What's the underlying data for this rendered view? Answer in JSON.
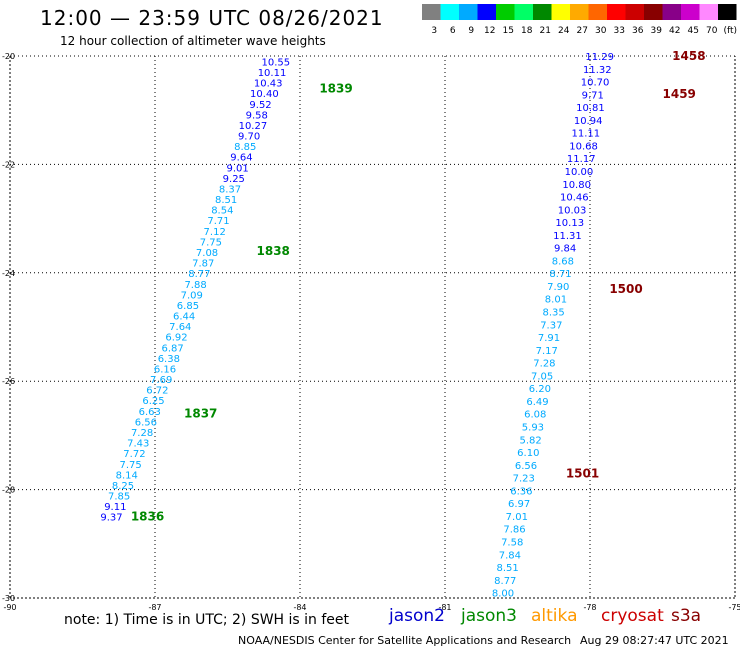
{
  "title": "12:00 — 23:59 UTC 08/26/2021",
  "subtitle": "12 hour collection of altimeter wave heights",
  "colorbar": {
    "colors": [
      "#808080",
      "#00ffff",
      "#00aaff",
      "#0000ff",
      "#00cc00",
      "#00ff66",
      "#008800",
      "#ffff00",
      "#ffaa00",
      "#ff6600",
      "#ff0000",
      "#cc0000",
      "#880000",
      "#880088",
      "#cc00cc",
      "#ff88ff",
      "#000000"
    ],
    "labels": [
      "3",
      "6",
      "9",
      "12",
      "15",
      "18",
      "21",
      "24",
      "27",
      "30",
      "33",
      "36",
      "39",
      "42",
      "45",
      "70",
      "(ft)"
    ]
  },
  "axes": {
    "lon_ticks": [
      "-90",
      "-87",
      "-84",
      "-81",
      "-78",
      "-75"
    ],
    "lat_ticks": [
      "-20",
      "-22",
      "-24",
      "-26",
      "-28",
      "-30"
    ],
    "lon_range": [
      -90,
      -75
    ],
    "lat_range": [
      -20,
      -30
    ]
  },
  "tracks": [
    {
      "name": "track-west",
      "start": [
        -84.5,
        -20.1
      ],
      "end": [
        -87.9,
        -28.5
      ],
      "values": [
        "10.55",
        "10.11",
        "10.43",
        "10.40",
        "9.52",
        "9.58",
        "10.27",
        "9.70",
        "8.85",
        "9.64",
        "9.01",
        "9.25",
        "8.37",
        "8.51",
        "8.54",
        "7.71",
        "7.12",
        "7.75",
        "7.08",
        "7.87",
        "8.77",
        "7.88",
        "7.09",
        "6.85",
        "6.44",
        "7.64",
        "6.92",
        "6.87",
        "6.38",
        "6.16",
        "7.69",
        "6.72",
        "6.25",
        "6.63",
        "6.56",
        "7.28",
        "7.43",
        "7.72",
        "7.75",
        "8.14",
        "8.25",
        "7.85",
        "9.11",
        "9.37"
      ],
      "times": [
        {
          "label": "1839",
          "lon": -83.6,
          "lat": -20.6
        },
        {
          "label": "1838",
          "lon": -84.9,
          "lat": -23.6
        },
        {
          "label": "1837",
          "lon": -86.4,
          "lat": -26.6
        },
        {
          "label": "1836",
          "lon": -87.5,
          "lat": -28.5
        }
      ]
    },
    {
      "name": "track-east",
      "start": [
        -77.8,
        -20.0
      ],
      "end": [
        -79.8,
        -29.9
      ],
      "values": [
        "11.29",
        "11.32",
        "10.70",
        "9.71",
        "10.81",
        "10.94",
        "11.11",
        "10.68",
        "11.17",
        "10.00",
        "10.80",
        "10.46",
        "10.03",
        "10.13",
        "11.31",
        "9.84",
        "8.68",
        "8.71",
        "7.90",
        "8.01",
        "8.35",
        "7.37",
        "7.91",
        "7.17",
        "7.28",
        "7.05",
        "6.20",
        "6.49",
        "6.08",
        "5.93",
        "5.82",
        "6.10",
        "6.56",
        "7.23",
        "6.36",
        "6.97",
        "7.01",
        "7.86",
        "7.58",
        "7.84",
        "8.51",
        "8.77",
        "8.00"
      ],
      "times": [
        {
          "label": "1458",
          "lon": -76.3,
          "lat": -20.0
        },
        {
          "label": "1459",
          "lon": -76.5,
          "lat": -20.7
        },
        {
          "label": "1500",
          "lon": -77.6,
          "lat": -24.3
        },
        {
          "label": "1501",
          "lon": -78.5,
          "lat": -27.7
        }
      ]
    }
  ],
  "note": "note:  1) Time is in UTC; 2) SWH is in feet",
  "satellites": [
    {
      "name": "jason2",
      "color": "#0000cc"
    },
    {
      "name": "jason3",
      "color": "#008800"
    },
    {
      "name": "altika",
      "color": "#ff9900"
    },
    {
      "name": "cryosat",
      "color": "#cc0000"
    },
    {
      "name": "s3a",
      "color": "#880000"
    }
  ],
  "footer": {
    "center": "NOAA/NESDIS Center for Satellite Applications and Research",
    "timestamp": "Aug 29 08:27:47 UTC 2021"
  },
  "chart_data": {
    "type": "scatter",
    "title": "12:00 — 23:59 UTC 08/26/2021",
    "subtitle": "12 hour collection of altimeter wave heights",
    "xlabel": "",
    "ylabel": "",
    "xlim": [
      -90,
      -75
    ],
    "ylim": [
      -30,
      -20
    ],
    "grid": true
  }
}
